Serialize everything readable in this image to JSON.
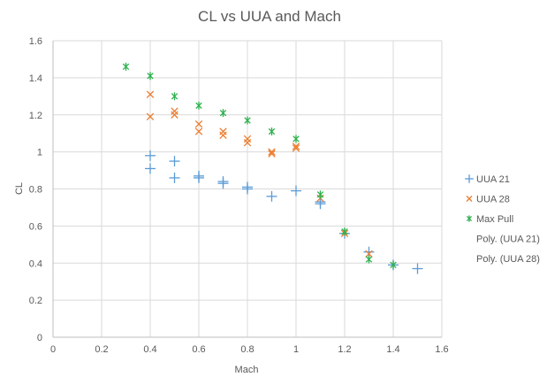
{
  "chart_data": {
    "type": "scatter",
    "title": "CL vs UUA and Mach",
    "xlabel": "Mach",
    "ylabel": "CL",
    "xlim": [
      0,
      1.6
    ],
    "ylim": [
      0,
      1.6
    ],
    "xticks": [
      "0",
      "0.2",
      "0.4",
      "0.6",
      "0.8",
      "1",
      "1.2",
      "1.4",
      "1.6"
    ],
    "yticks": [
      "0",
      "0.2",
      "0.4",
      "0.6",
      "0.8",
      "1",
      "1.2",
      "1.4",
      "1.6"
    ],
    "grid": true,
    "legend_position": "right",
    "series": [
      {
        "name": "UUA 21",
        "marker": "plus",
        "color": "#5B9BD5",
        "x": [
          0.4,
          0.4,
          0.5,
          0.5,
          0.6,
          0.6,
          0.7,
          0.7,
          0.8,
          0.8,
          0.9,
          1.0,
          1.1,
          1.1,
          1.2,
          1.3,
          1.4,
          1.5
        ],
        "y": [
          0.98,
          0.91,
          0.95,
          0.86,
          0.87,
          0.86,
          0.84,
          0.83,
          0.81,
          0.8,
          0.76,
          0.79,
          0.73,
          0.72,
          0.56,
          0.46,
          0.39,
          0.37
        ]
      },
      {
        "name": "UUA 28",
        "marker": "x",
        "color": "#ED7D31",
        "x": [
          0.4,
          0.4,
          0.5,
          0.5,
          0.6,
          0.6,
          0.7,
          0.7,
          0.8,
          0.8,
          0.9,
          0.9,
          1.0,
          1.0,
          1.1,
          1.2,
          1.3
        ],
        "y": [
          1.31,
          1.19,
          1.22,
          1.2,
          1.15,
          1.11,
          1.11,
          1.09,
          1.07,
          1.05,
          1.0,
          0.99,
          1.03,
          1.02,
          0.75,
          0.56,
          0.45
        ]
      },
      {
        "name": "Max Pull",
        "marker": "asterisk",
        "color": "#2DB14E",
        "x": [
          0.3,
          0.4,
          0.5,
          0.6,
          0.7,
          0.8,
          0.9,
          1.0,
          1.1,
          1.2,
          1.3,
          1.4
        ],
        "y": [
          1.46,
          1.41,
          1.3,
          1.25,
          1.21,
          1.17,
          1.11,
          1.07,
          0.77,
          0.57,
          0.42,
          0.39
        ]
      }
    ],
    "legend_entries": [
      "UUA 21",
      "UUA 28",
      "Max Pull",
      "Poly. (UUA 21)",
      "Poly. (UUA 28)"
    ]
  }
}
